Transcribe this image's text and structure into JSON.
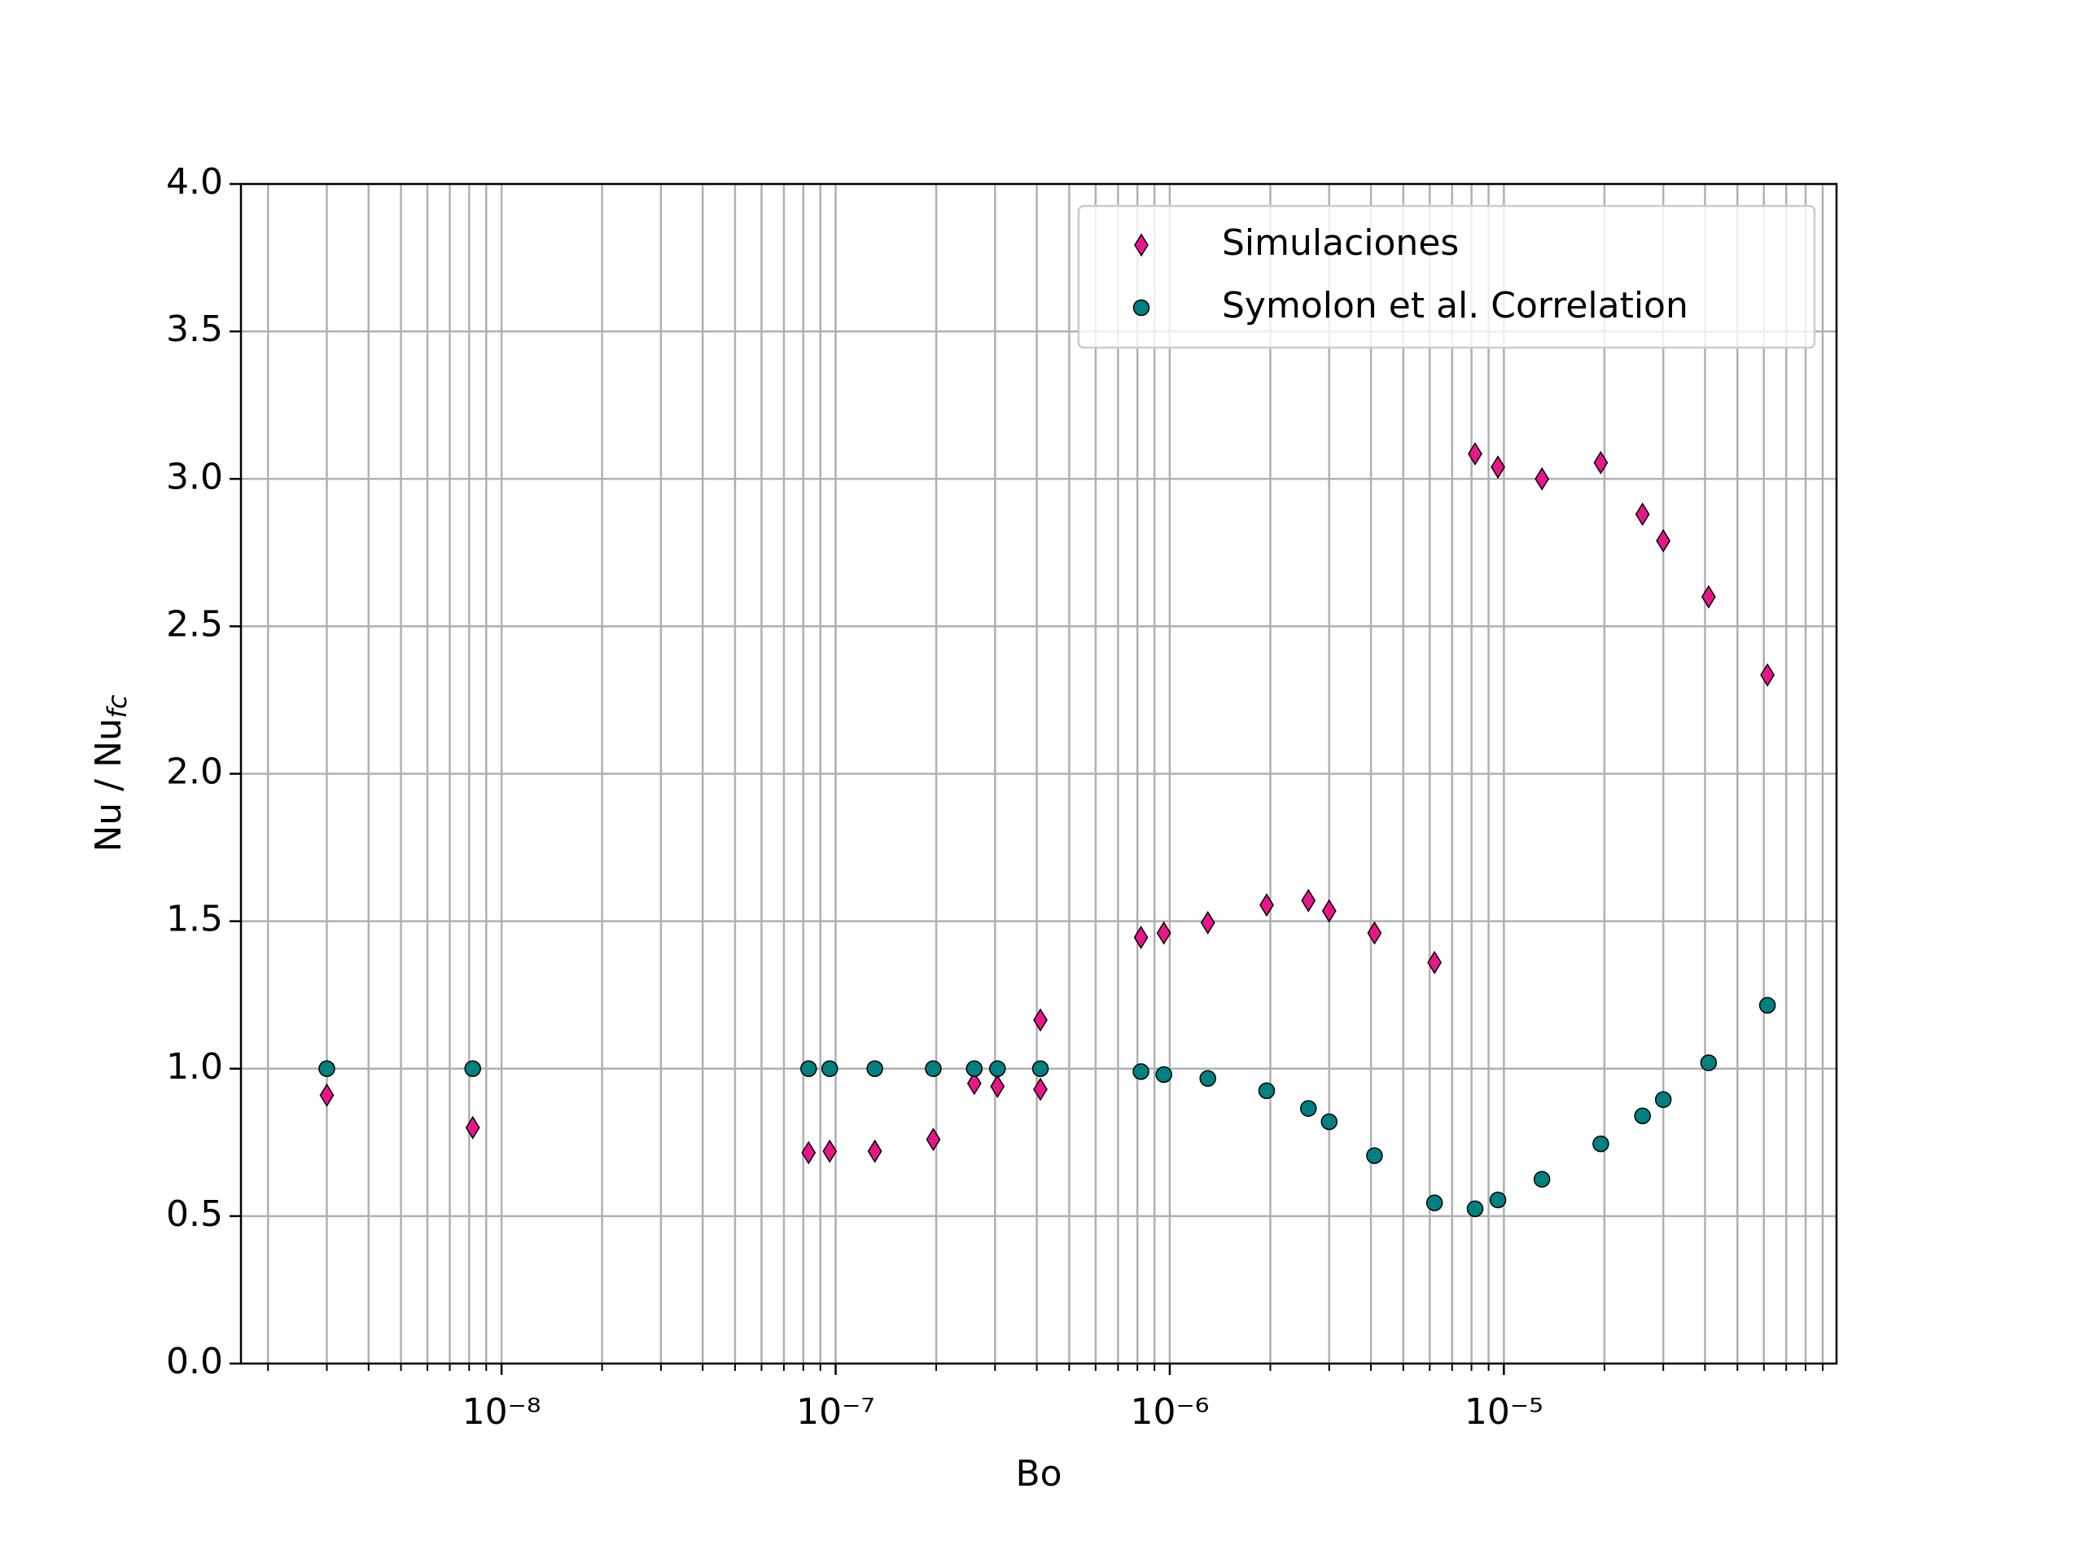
{
  "chart_data": {
    "type": "scatter",
    "xlabel": "Bo",
    "ylabel": "Nu / Nu",
    "ylabel_sub": "fc",
    "xscale": "log",
    "grid": true,
    "legend_loc": "upper right",
    "xlim": [
      1.66e-09,
      9.9e-05
    ],
    "ylim": [
      0,
      4
    ],
    "xticks": [
      {
        "value": 1e-08,
        "label": "10⁻⁸"
      },
      {
        "value": 1e-07,
        "label": "10⁻⁷"
      },
      {
        "value": 1e-06,
        "label": "10⁻⁶"
      },
      {
        "value": 1e-05,
        "label": "10⁻⁵"
      }
    ],
    "xticks_minor": [
      2e-09,
      3e-09,
      4e-09,
      5e-09,
      6e-09,
      7e-09,
      8e-09,
      9e-09,
      2e-08,
      3e-08,
      4e-08,
      5e-08,
      6e-08,
      7e-08,
      8e-08,
      9e-08,
      2e-07,
      3e-07,
      4e-07,
      5e-07,
      6e-07,
      7e-07,
      8e-07,
      9e-07,
      2e-06,
      3e-06,
      4e-06,
      5e-06,
      6e-06,
      7e-06,
      8e-06,
      9e-06,
      2e-05,
      3e-05,
      4e-05,
      5e-05,
      6e-05,
      7e-05,
      8e-05,
      9e-05
    ],
    "yticks": [
      {
        "value": 0,
        "label": "0.0"
      },
      {
        "value": 0.5,
        "label": "0.5"
      },
      {
        "value": 1,
        "label": "1.0"
      },
      {
        "value": 1.5,
        "label": "1.5"
      },
      {
        "value": 2,
        "label": "2.0"
      },
      {
        "value": 2.5,
        "label": "2.5"
      },
      {
        "value": 3,
        "label": "3.0"
      },
      {
        "value": 3.5,
        "label": "3.5"
      },
      {
        "value": 4,
        "label": "4.0"
      }
    ],
    "series": [
      {
        "name": "Simulaciones",
        "color": "#e8168a",
        "marker": "diamond",
        "x": [
          3e-09,
          8.2e-09,
          8.3e-08,
          9.6e-08,
          1.31e-07,
          1.96e-07,
          2.6e-07,
          3.05e-07,
          4.1e-07,
          4.1e-07,
          8.2e-07,
          9.6e-07,
          1.3e-06,
          1.95e-06,
          2.6e-06,
          3e-06,
          4.1e-06,
          6.2e-06,
          8.2e-06,
          9.6e-06,
          1.3e-05,
          1.95e-05,
          2.6e-05,
          3e-05,
          4.1e-05,
          6.15e-05
        ],
        "values": [
          0.91,
          0.8,
          0.715,
          0.72,
          0.72,
          0.76,
          0.95,
          0.94,
          0.93,
          1.165,
          1.445,
          1.46,
          1.495,
          1.555,
          1.57,
          1.535,
          1.46,
          1.36,
          3.085,
          3.04,
          3.0,
          3.055,
          2.88,
          2.79,
          2.6,
          2.335
        ]
      },
      {
        "name": "Symolon et al. Correlation",
        "color": "#008080",
        "marker": "circle",
        "x": [
          3e-09,
          8.2e-09,
          8.3e-08,
          9.6e-08,
          1.31e-07,
          1.96e-07,
          2.6e-07,
          3.05e-07,
          4.1e-07,
          8.2e-07,
          9.6e-07,
          1.3e-06,
          1.95e-06,
          2.6e-06,
          3e-06,
          4.1e-06,
          6.2e-06,
          8.2e-06,
          9.6e-06,
          1.3e-05,
          1.95e-05,
          2.6e-05,
          3e-05,
          4.1e-05,
          6.15e-05
        ],
        "values": [
          1,
          1,
          1,
          1,
          1,
          1,
          1,
          1,
          1,
          0.99,
          0.98,
          0.967,
          0.925,
          0.865,
          0.82,
          0.705,
          0.545,
          0.525,
          0.555,
          0.625,
          0.745,
          0.84,
          0.895,
          1.02,
          1.215
        ]
      }
    ]
  }
}
